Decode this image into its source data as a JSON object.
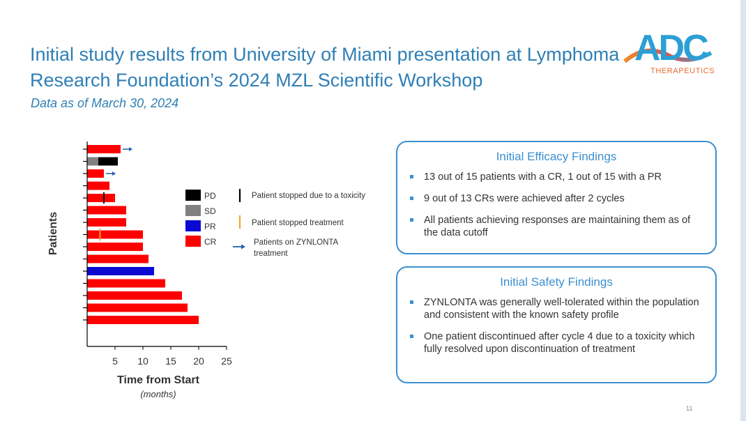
{
  "header": {
    "title": "Initial study results from University of Miami presentation at Lymphoma Research Foundation’s 2024 MZL Scientific Workshop",
    "subtitle": "Data as of March 30, 2024"
  },
  "logo": {
    "mark": "ADC",
    "sub": "THERAPEUTICS"
  },
  "chart_data": {
    "type": "bar",
    "orientation": "horizontal",
    "title": "",
    "xlabel": "Time from Start",
    "xlabel_sub": "(months)",
    "ylabel": "Patients",
    "xlim": [
      0,
      25
    ],
    "xticks": [
      "5",
      "10",
      "15",
      "20",
      "25"
    ],
    "patients": [
      {
        "value": 6,
        "response": "CR",
        "ongoing": true
      },
      {
        "value": 5.5,
        "response": "PD",
        "sd_until": 2,
        "ongoing": false
      },
      {
        "value": 3,
        "response": "CR",
        "ongoing": true
      },
      {
        "value": 4,
        "response": "CR",
        "ongoing": false
      },
      {
        "value": 5,
        "response": "CR",
        "toxicity_at": 3,
        "ongoing": false
      },
      {
        "value": 7,
        "response": "CR",
        "ongoing": false
      },
      {
        "value": 7,
        "response": "CR",
        "ongoing": false
      },
      {
        "value": 10,
        "response": "CR",
        "stopped_at": 2.3,
        "ongoing": false
      },
      {
        "value": 10,
        "response": "CR",
        "ongoing": false
      },
      {
        "value": 11,
        "response": "CR",
        "ongoing": false
      },
      {
        "value": 12,
        "response": "PR",
        "ongoing": false
      },
      {
        "value": 14,
        "response": "CR",
        "ongoing": false
      },
      {
        "value": 17,
        "response": "CR",
        "ongoing": false
      },
      {
        "value": 18,
        "response": "CR",
        "ongoing": false
      },
      {
        "value": 20,
        "response": "CR",
        "ongoing": false
      }
    ],
    "legend": [
      {
        "label": "PD",
        "color": "#000000"
      },
      {
        "label": "SD",
        "color": "#808080"
      },
      {
        "label": "PR",
        "color": "#0a0ad2"
      },
      {
        "label": "CR",
        "color": "#ff0000"
      }
    ],
    "markers": [
      {
        "label": "Patient stopped due to a toxicity",
        "color": "#000000"
      },
      {
        "label": "Patient stopped treatment",
        "color": "#f0a830"
      },
      {
        "label": "Patients on ZYNLONTA treatment",
        "color": "#2060b0"
      }
    ]
  },
  "efficacy": {
    "title": "Initial Efficacy Findings",
    "items": [
      "13 out of 15 patients with a CR, 1 out of 15 with a PR",
      "9 out of 13 CRs were achieved after 2 cycles",
      "All patients achieving responses are maintaining them as of the data cutoff"
    ]
  },
  "safety": {
    "title": "Initial Safety Findings",
    "items": [
      "ZYNLONTA was generally well-tolerated within the population and consistent with the known safety profile",
      "One patient discontinued after cycle 4 due to a toxicity which fully resolved upon discontinuation of treatment"
    ]
  },
  "page_number": "11"
}
